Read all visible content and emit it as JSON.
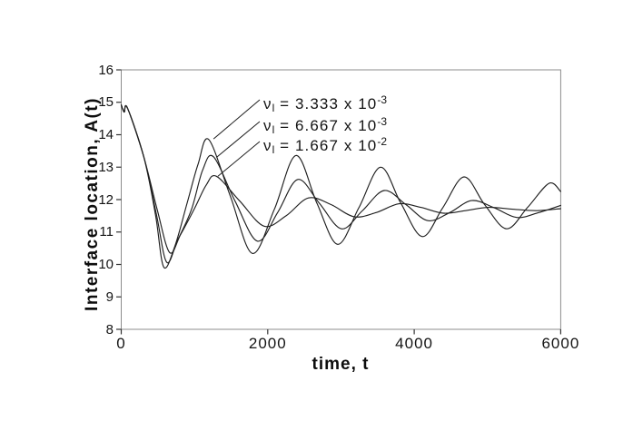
{
  "chart_data": {
    "type": "line",
    "xlabel": "time, t",
    "ylabel": "Interface location, A(t)",
    "xlim": [
      0,
      6000
    ],
    "ylim": [
      8,
      16
    ],
    "xtick_values": [
      0,
      2000,
      4000,
      6000
    ],
    "xtick_labels": [
      "0",
      "2000",
      "4000",
      "6000"
    ],
    "ytick_values": [
      16,
      15,
      14,
      13,
      12,
      11,
      10,
      9,
      8
    ],
    "ytick_labels": [
      "16",
      "15",
      "14",
      "13",
      "12",
      "11",
      "10",
      "9",
      "8"
    ],
    "grid": false,
    "legend": "none",
    "line_color": "#1f1f1f",
    "frame_color": "#8c8c8c",
    "tick_color": "#333333",
    "series": [
      {
        "name": "nu_l = 3.333 x 10^-3",
        "points": [
          [
            0,
            14.92
          ],
          [
            40,
            14.7
          ],
          [
            85,
            14.82
          ],
          [
            310,
            13.3
          ],
          [
            470,
            11.5
          ],
          [
            580,
            9.92
          ],
          [
            730,
            10.55
          ],
          [
            900,
            11.9
          ],
          [
            1050,
            13.1
          ],
          [
            1195,
            13.85
          ],
          [
            1490,
            12.1
          ],
          [
            1790,
            10.34
          ],
          [
            2090,
            11.7
          ],
          [
            2385,
            13.36
          ],
          [
            2670,
            11.9
          ],
          [
            2955,
            10.62
          ],
          [
            3245,
            11.75
          ],
          [
            3540,
            13.0
          ],
          [
            3815,
            11.9
          ],
          [
            4110,
            10.86
          ],
          [
            4390,
            11.75
          ],
          [
            4680,
            12.7
          ],
          [
            4960,
            11.85
          ],
          [
            5260,
            11.1
          ],
          [
            5545,
            11.75
          ],
          [
            5840,
            12.5
          ],
          [
            6000,
            12.25
          ]
        ]
      },
      {
        "name": "nu_l = 6.667 x 10^-3",
        "points": [
          [
            0,
            14.92
          ],
          [
            40,
            14.7
          ],
          [
            85,
            14.82
          ],
          [
            310,
            13.3
          ],
          [
            480,
            11.55
          ],
          [
            620,
            10.07
          ],
          [
            770,
            10.75
          ],
          [
            960,
            11.7
          ],
          [
            1110,
            12.9
          ],
          [
            1260,
            13.32
          ],
          [
            1555,
            11.95
          ],
          [
            1860,
            10.72
          ],
          [
            2135,
            11.6
          ],
          [
            2410,
            12.62
          ],
          [
            2700,
            11.9
          ],
          [
            3005,
            11.1
          ],
          [
            3290,
            11.65
          ],
          [
            3590,
            12.28
          ],
          [
            3885,
            11.85
          ],
          [
            4185,
            11.35
          ],
          [
            4485,
            11.6
          ],
          [
            4785,
            11.97
          ],
          [
            5090,
            11.75
          ],
          [
            5400,
            11.45
          ],
          [
            5700,
            11.6
          ],
          [
            6000,
            11.82
          ]
        ]
      },
      {
        "name": "nu_l = 1.667 x 10^-2",
        "points": [
          [
            0,
            14.92
          ],
          [
            40,
            14.7
          ],
          [
            85,
            14.82
          ],
          [
            310,
            13.3
          ],
          [
            490,
            11.7
          ],
          [
            660,
            10.37
          ],
          [
            810,
            10.92
          ],
          [
            1000,
            11.72
          ],
          [
            1160,
            12.45
          ],
          [
            1300,
            12.72
          ],
          [
            1620,
            11.95
          ],
          [
            1950,
            11.18
          ],
          [
            2250,
            11.5
          ],
          [
            2555,
            12.05
          ],
          [
            2860,
            11.85
          ],
          [
            3180,
            11.47
          ],
          [
            3480,
            11.6
          ],
          [
            3795,
            11.87
          ],
          [
            4090,
            11.76
          ],
          [
            4400,
            11.58
          ],
          [
            4700,
            11.66
          ],
          [
            5010,
            11.76
          ],
          [
            5320,
            11.71
          ],
          [
            5660,
            11.66
          ],
          [
            6000,
            11.72
          ]
        ]
      }
    ],
    "annotations": [
      {
        "nu": "ν",
        "sub": "l",
        "body": " = 3.333 x 10",
        "exp": "-3",
        "points_to": {
          "t": 1260,
          "A": 13.87
        }
      },
      {
        "nu": "ν",
        "sub": "l",
        "body": " = 6.667 x 10",
        "exp": "-3",
        "points_to": {
          "t": 1300,
          "A": 13.3
        }
      },
      {
        "nu": "ν",
        "sub": "l",
        "body": " = 1.667 x 10",
        "exp": "-2",
        "points_to": {
          "t": 1320,
          "A": 12.72
        }
      }
    ]
  }
}
